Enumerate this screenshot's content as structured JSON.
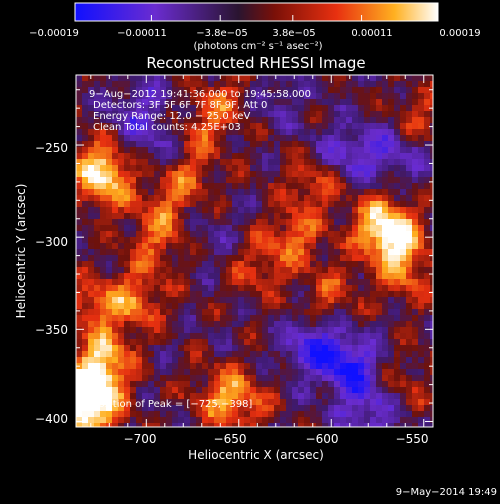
{
  "chart_data": {
    "type": "heatmap",
    "title": "Reconstructed RHESSI Image",
    "xlabel": "Heliocentric X (arcsec)",
    "ylabel": "Heliocentric Y (arcsec)",
    "xlim": [
      -738,
      -545
    ],
    "ylim": [
      -403,
      -212
    ],
    "x_ticks": [
      -700,
      -650,
      -600,
      -550
    ],
    "x_tick_labels": [
      "−700",
      "−650",
      "−600",
      "−550"
    ],
    "y_ticks": [
      -400,
      -350,
      -300,
      -250
    ],
    "y_tick_labels": [
      "−400",
      "−350",
      "−300",
      "−250"
    ],
    "colorbar": {
      "range": [
        -0.00019,
        0.00019
      ],
      "tick_labels": [
        "−0.00019",
        "−0.00011",
        "−3.8e−05",
        "3.8e−05",
        "0.00011",
        "0.00019"
      ],
      "unit_label": "(photons cm⁻² s⁻¹ asec⁻²)",
      "colors": [
        "#1010ff",
        "#6a2cd0",
        "#301a40",
        "#8a1410",
        "#e83010",
        "#ffb020",
        "#ffffff"
      ]
    },
    "annotations": [
      "9−Aug−2012 19:41:36.000 to 19:45:58.000",
      "Detectors: 3F 5F 6F 7F 8F 9F, Att 0",
      "Energy Range: 12.0 − 25.0 keV",
      "Clean    Total counts: 4.25E+03"
    ],
    "peak_label": "Position of Peak = [−725,−398]",
    "peak_position": [
      -725,
      -398
    ],
    "regions": [
      {
        "x": -733,
        "y": -395,
        "v": 1.0
      },
      {
        "x": -728,
        "y": -380,
        "v": 0.9
      },
      {
        "x": -722,
        "y": -365,
        "v": 0.6
      },
      {
        "x": -727,
        "y": -337,
        "v": 0.55
      },
      {
        "x": -722,
        "y": -270,
        "v": 0.75
      },
      {
        "x": -726,
        "y": -257,
        "v": 0.5
      },
      {
        "x": -705,
        "y": -334,
        "v": 0.55
      },
      {
        "x": -695,
        "y": -305,
        "v": 0.45
      },
      {
        "x": -690,
        "y": -285,
        "v": 0.4
      },
      {
        "x": -678,
        "y": -265,
        "v": 0.5
      },
      {
        "x": -670,
        "y": -240,
        "v": 0.45
      },
      {
        "x": -655,
        "y": -225,
        "v": 0.35
      },
      {
        "x": -660,
        "y": -385,
        "v": 0.5
      },
      {
        "x": -648,
        "y": -390,
        "v": 0.45
      },
      {
        "x": -640,
        "y": -318,
        "v": 0.4
      },
      {
        "x": -620,
        "y": -300,
        "v": 0.55
      },
      {
        "x": -610,
        "y": -270,
        "v": 0.5
      },
      {
        "x": -600,
        "y": -330,
        "v": 0.4
      },
      {
        "x": -575,
        "y": -290,
        "v": 0.5
      },
      {
        "x": -567,
        "y": -300,
        "v": 0.95
      },
      {
        "x": -560,
        "y": -320,
        "v": 0.5
      },
      {
        "x": -552,
        "y": -235,
        "v": 0.4
      },
      {
        "x": -560,
        "y": -378,
        "v": 0.3
      },
      {
        "x": -690,
        "y": -250,
        "v": -0.35
      },
      {
        "x": -710,
        "y": -240,
        "v": -0.3
      },
      {
        "x": -596,
        "y": -255,
        "v": -0.4
      },
      {
        "x": -578,
        "y": -255,
        "v": -0.35
      },
      {
        "x": -610,
        "y": -360,
        "v": -0.65
      },
      {
        "x": -590,
        "y": -370,
        "v": -0.8
      },
      {
        "x": -580,
        "y": -395,
        "v": -0.55
      },
      {
        "x": -630,
        "y": -225,
        "v": -0.3
      },
      {
        "x": -700,
        "y": -225,
        "v": -0.25
      },
      {
        "x": -560,
        "y": -255,
        "v": -0.3
      },
      {
        "x": -665,
        "y": -300,
        "v": -0.2
      }
    ]
  },
  "timestamp": "9−May−2014 19:49"
}
